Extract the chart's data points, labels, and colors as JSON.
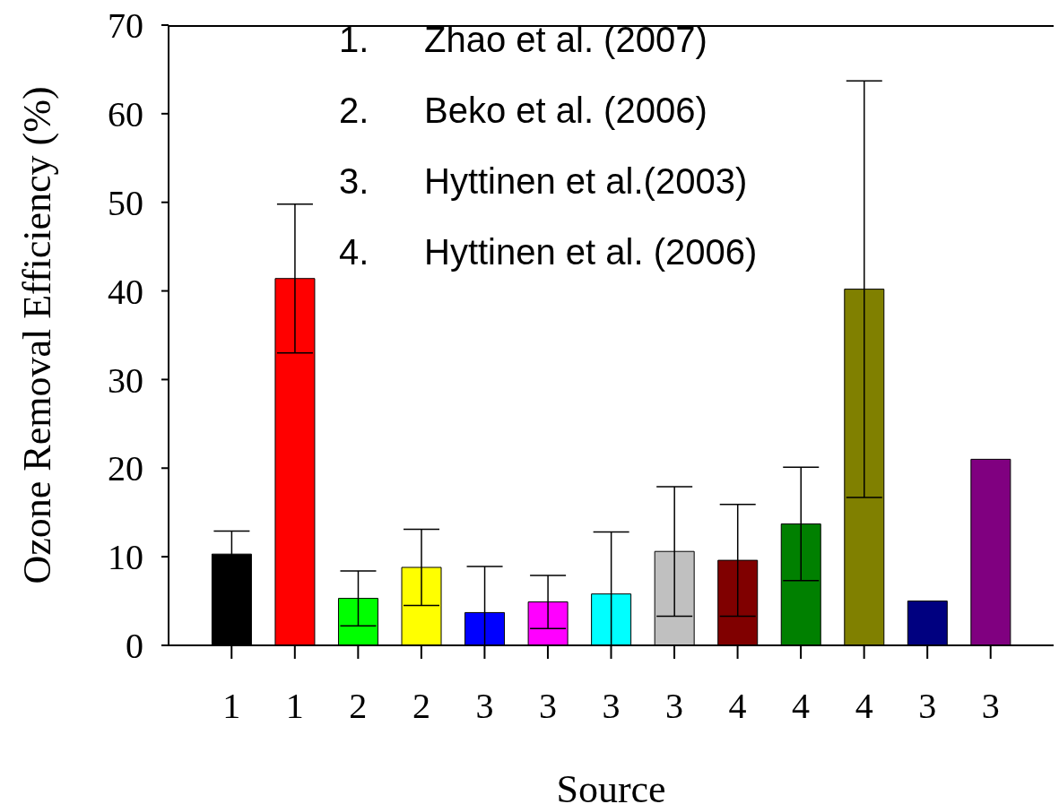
{
  "chart_data": {
    "type": "bar",
    "xlabel": "Source",
    "ylabel": "Ozone Removal Efficiency (%)",
    "categories": [
      "1",
      "1",
      "2",
      "2",
      "3",
      "3",
      "3",
      "3",
      "4",
      "4",
      "4",
      "3",
      "3"
    ],
    "values": [
      10.3,
      41.4,
      5.3,
      8.8,
      3.7,
      4.9,
      5.8,
      10.6,
      9.6,
      13.7,
      40.2,
      5.0,
      21.0
    ],
    "errors": [
      2.6,
      8.4,
      3.1,
      4.3,
      [
        0,
        8.9
      ],
      3.0,
      [
        0,
        12.8
      ],
      7.3,
      6.3,
      6.4,
      23.5,
      null,
      null
    ],
    "colors": [
      "#000000",
      "#ff0000",
      "#00ff00",
      "#ffff00",
      "#0000ff",
      "#ff00ff",
      "#00ffff",
      "#c0c0c0",
      "#800000",
      "#008000",
      "#808000",
      "#000080",
      "#800080"
    ],
    "ylim": [
      0,
      70
    ],
    "yticks": [
      0,
      10,
      20,
      30,
      40,
      50,
      60,
      70
    ],
    "grid": false,
    "legend": false,
    "annotations": [
      "1.     Zhao et al. (2007)",
      "2.      Beko et al. (2006)",
      "3.     Hyttinen et al.(2003)",
      "4.     Hyttinen et al. (2006)"
    ]
  }
}
